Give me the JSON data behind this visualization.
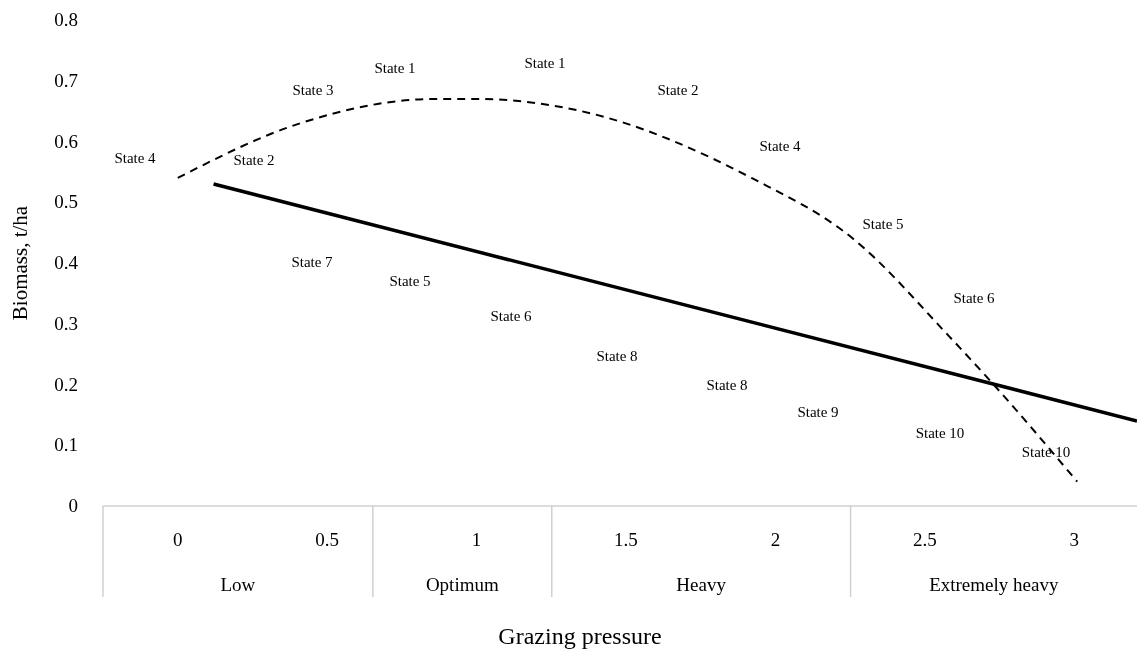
{
  "chart_data": {
    "type": "line",
    "xlabel": "Grazing pressure",
    "ylabel": "Biomass, t/ha",
    "xlim": [
      -0.25,
      3.21
    ],
    "xticks": [
      0,
      0.5,
      1,
      1.5,
      2,
      2.5,
      3
    ],
    "ylim": [
      0,
      0.8
    ],
    "yticks": [
      0,
      0.1,
      0.2,
      0.3,
      0.4,
      0.5,
      0.6,
      0.7,
      0.8
    ],
    "marker": "none",
    "series": [
      {
        "color": "#000000",
        "line_style": "dashed",
        "x": [
          0,
          0.41,
          0.86,
          1.0,
          1.35,
          1.92,
          2.26,
          2.58,
          2.73,
          3.01
        ],
        "values": [
          0.54,
          0.63,
          0.67,
          0.67,
          0.65,
          0.54,
          0.44,
          0.28,
          0.2,
          0.04
        ]
      },
      {
        "color": "#000000",
        "line_style": "solid",
        "x": [
          0.12,
          3.21
        ],
        "values": [
          0.53,
          0.14
        ]
      }
    ],
    "annotations": [
      "Low",
      "Optimum",
      "Heavy",
      "Extremely heavy",
      "State 4",
      "State 2",
      "State 3",
      "State 1",
      "State 1",
      "State 2",
      "State 4",
      "State 5",
      "State 6",
      "State 10",
      "State 7",
      "State 5",
      "State 6",
      "State 8",
      "State 8",
      "State 9",
      "State 10"
    ]
  }
}
